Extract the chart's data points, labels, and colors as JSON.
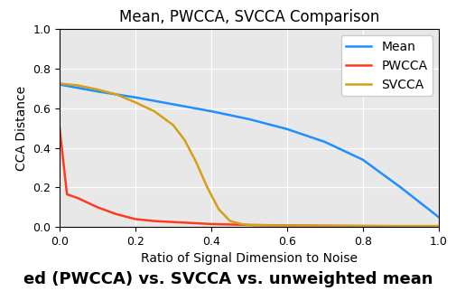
{
  "title": "Mean, PWCCA, SVCCA Comparison",
  "xlabel": "Ratio of Signal Dimension to Noise",
  "ylabel": "CCA Distance",
  "xlim": [
    0.0,
    1.0
  ],
  "ylim": [
    0.0,
    1.0
  ],
  "background_color": "#e8e8e8",
  "legend_labels": [
    "Mean",
    "PWCCA",
    "SVCCA"
  ],
  "line_colors": [
    "#1f8fff",
    "#ff3b1f",
    "#d4a017"
  ],
  "mean_x": [
    0.0,
    0.1,
    0.2,
    0.3,
    0.4,
    0.5,
    0.6,
    0.7,
    0.8,
    0.9,
    1.0
  ],
  "mean_y": [
    0.72,
    0.685,
    0.655,
    0.62,
    0.585,
    0.545,
    0.495,
    0.43,
    0.34,
    0.2,
    0.05
  ],
  "pwcca_x": [
    0.0,
    0.02,
    0.05,
    0.1,
    0.15,
    0.2,
    0.25,
    0.3,
    0.4,
    0.5,
    0.6,
    0.7,
    0.8,
    0.9,
    1.0
  ],
  "pwcca_y": [
    0.51,
    0.165,
    0.145,
    0.1,
    0.065,
    0.04,
    0.03,
    0.025,
    0.015,
    0.01,
    0.008,
    0.006,
    0.005,
    0.004,
    0.004
  ],
  "svcca_x": [
    0.0,
    0.05,
    0.1,
    0.15,
    0.2,
    0.25,
    0.3,
    0.33,
    0.36,
    0.39,
    0.42,
    0.45,
    0.48,
    0.5,
    0.6,
    0.7,
    0.8,
    0.9,
    1.0
  ],
  "svcca_y": [
    0.725,
    0.715,
    0.695,
    0.67,
    0.63,
    0.585,
    0.515,
    0.44,
    0.33,
    0.2,
    0.09,
    0.03,
    0.015,
    0.01,
    0.007,
    0.006,
    0.005,
    0.005,
    0.005
  ],
  "caption": "ed (PWCCA) vs. SVCCA vs. unweighted mean",
  "caption_fontsize": 13,
  "title_fontsize": 12,
  "label_fontsize": 10,
  "tick_fontsize": 9,
  "legend_fontsize": 10,
  "linewidth": 1.8,
  "figsize": [
    5.06,
    3.22
  ],
  "dpi": 100
}
